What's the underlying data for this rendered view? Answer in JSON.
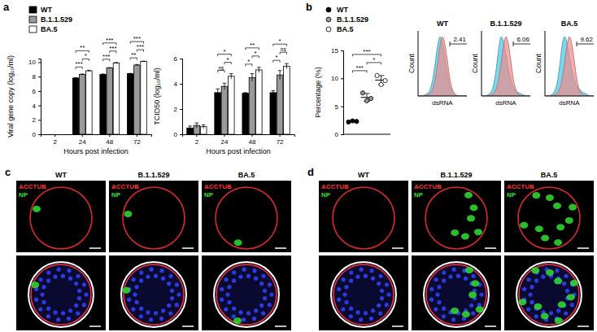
{
  "panel_labels": [
    "a",
    "b"
  ],
  "chart_data": [
    {
      "type": "bar",
      "y_label": "Viral gene copy (log₁₀/ml)",
      "x_label": "Hours post infection",
      "categories": [
        "2",
        "24",
        "48",
        "72"
      ],
      "series": [
        {
          "name": "WT",
          "color": "#000000",
          "values": [
            null,
            7.8,
            8.3,
            8.4
          ],
          "errors": [
            null,
            0.05,
            0.06,
            0.05
          ]
        },
        {
          "name": "B.1.1.529",
          "color": "#9a9a9a",
          "values": [
            null,
            8.3,
            9.2,
            9.6
          ],
          "errors": [
            null,
            0.06,
            0.05,
            0.08
          ]
        },
        {
          "name": "BA.5",
          "color": "#ffffff",
          "values": [
            null,
            8.8,
            9.9,
            10.1
          ],
          "errors": [
            null,
            0.08,
            0.06,
            0.05
          ]
        }
      ],
      "ylim": [
        0,
        10.5
      ],
      "yticks": [
        0,
        2,
        4,
        6,
        8,
        10
      ],
      "legend": "top-left",
      "annotations": [
        {
          "text": "***",
          "category": "24",
          "pair": [
            "WT",
            "B.1.1.529"
          ]
        },
        {
          "text": "*",
          "category": "24",
          "pair": [
            "B.1.1.529",
            "BA.5"
          ]
        },
        {
          "text": "**",
          "category": "24",
          "pair": [
            "WT",
            "BA.5"
          ]
        },
        {
          "text": "***",
          "category": "48",
          "pair": [
            "WT",
            "B.1.1.529"
          ]
        },
        {
          "text": "***",
          "category": "48",
          "pair": [
            "B.1.1.529",
            "BA.5"
          ]
        },
        {
          "text": "***",
          "category": "48",
          "pair": [
            "WT",
            "BA.5"
          ]
        },
        {
          "text": "**",
          "category": "72",
          "pair": [
            "WT",
            "B.1.1.529"
          ]
        },
        {
          "text": "***",
          "category": "72",
          "pair": [
            "B.1.1.529",
            "BA.5"
          ]
        },
        {
          "text": "***",
          "category": "72",
          "pair": [
            "WT",
            "BA.5"
          ]
        }
      ]
    },
    {
      "type": "bar",
      "y_label": "TCID50 (log₁₀/ml)",
      "x_label": "Hours post infection",
      "categories": [
        "2",
        "24",
        "48",
        "72"
      ],
      "series": [
        {
          "name": "WT",
          "color": "#000000",
          "values": [
            0.5,
            3.3,
            3.25,
            3.3
          ],
          "errors": [
            0.15,
            0.3,
            0.05,
            0.15
          ]
        },
        {
          "name": "B.1.1.529",
          "color": "#9a9a9a",
          "values": [
            0.7,
            3.8,
            4.5,
            4.7
          ],
          "errors": [
            0.2,
            0.25,
            0.3,
            0.35
          ]
        },
        {
          "name": "BA.5",
          "color": "#ffffff",
          "values": [
            0.6,
            4.6,
            5.1,
            5.4
          ],
          "errors": [
            0.15,
            0.2,
            0.2,
            0.2
          ]
        }
      ],
      "ylim": [
        0,
        6
      ],
      "yticks": [
        0,
        2,
        4,
        6
      ],
      "annotations": [
        {
          "text": "ns",
          "category": "24",
          "pair": [
            "WT",
            "B.1.1.529"
          ]
        },
        {
          "text": "*",
          "category": "24",
          "pair": [
            "B.1.1.529",
            "BA.5"
          ]
        },
        {
          "text": "*",
          "category": "24",
          "pair": [
            "WT",
            "BA.5"
          ]
        },
        {
          "text": "*",
          "category": "48",
          "pair": [
            "WT",
            "B.1.1.529"
          ]
        },
        {
          "text": "*",
          "category": "48",
          "pair": [
            "B.1.1.529",
            "BA.5"
          ]
        },
        {
          "text": "**",
          "category": "48",
          "pair": [
            "WT",
            "BA.5"
          ]
        },
        {
          "text": "*",
          "category": "72",
          "pair": [
            "WT",
            "B.1.1.529"
          ]
        },
        {
          "text": "ns",
          "category": "72",
          "pair": [
            "B.1.1.529",
            "BA.5"
          ]
        },
        {
          "text": "*",
          "category": "72",
          "pair": [
            "WT",
            "BA.5"
          ]
        }
      ]
    },
    {
      "type": "dot",
      "y_label": "Percentage (%)",
      "marker": "circle",
      "series": [
        {
          "name": "WT",
          "color": "#000000",
          "values": [
            2.2,
            2.4,
            2.3
          ],
          "mean": 2.3,
          "error": 0.1
        },
        {
          "name": "B.1.1.529",
          "color": "#9a9a9a",
          "values": [
            7.4,
            6.0,
            6.4
          ],
          "mean": 6.6,
          "error": 0.7
        },
        {
          "name": "BA.5",
          "color": "#ffffff",
          "values": [
            10.5,
            8.9,
            9.6
          ],
          "mean": 9.7,
          "error": 0.8
        }
      ],
      "ylim": [
        0,
        15
      ],
      "yticks": [
        0,
        5,
        10,
        15
      ],
      "legend": "top-left",
      "tick_labels": "y",
      "annotations": [
        {
          "text": "***",
          "pair": [
            "WT",
            "B.1.1.529"
          ]
        },
        {
          "text": "*",
          "pair": [
            "B.1.1.529",
            "BA.5"
          ]
        },
        {
          "text": "***",
          "pair": [
            "WT",
            "BA.5"
          ]
        }
      ]
    },
    {
      "type": "area",
      "title": "WT",
      "x_label": "dsRNA",
      "y_label": "Count",
      "tick_labels": false,
      "x": [
        0,
        1,
        2,
        3,
        4,
        5,
        6,
        7,
        8,
        9,
        10,
        11,
        12,
        13,
        14,
        15,
        16,
        17,
        18,
        19,
        20
      ],
      "series": [
        {
          "color": "#45c5e5",
          "values": [
            0,
            0,
            1,
            2,
            5,
            12,
            28,
            55,
            85,
            100,
            90,
            65,
            38,
            18,
            7,
            3,
            1,
            0,
            0,
            0,
            0
          ]
        },
        {
          "color": "#f08a8a",
          "values": [
            0,
            0,
            0,
            1,
            2,
            5,
            12,
            28,
            55,
            85,
            100,
            88,
            60,
            30,
            12,
            4,
            1,
            0,
            0,
            0,
            0
          ]
        }
      ],
      "xlim": [
        0,
        20
      ],
      "ylim": [
        0,
        110
      ],
      "gate": {
        "x": 13,
        "value": 2.41
      }
    },
    {
      "type": "area",
      "title": "B.1.1.529",
      "x_label": "dsRNA",
      "y_label": "Count",
      "tick_labels": false,
      "x": [
        0,
        1,
        2,
        3,
        4,
        5,
        6,
        7,
        8,
        9,
        10,
        11,
        12,
        13,
        14,
        15,
        16,
        17,
        18,
        19,
        20
      ],
      "series": [
        {
          "color": "#45c5e5",
          "values": [
            0,
            0,
            1,
            3,
            8,
            20,
            45,
            78,
            100,
            92,
            70,
            45,
            28,
            16,
            9,
            6,
            4,
            2,
            1,
            0,
            0
          ]
        },
        {
          "color": "#f08a8a",
          "values": [
            0,
            0,
            0,
            1,
            2,
            5,
            12,
            28,
            55,
            85,
            100,
            88,
            60,
            30,
            12,
            4,
            1,
            0,
            0,
            0,
            0
          ]
        }
      ],
      "xlim": [
        0,
        20
      ],
      "ylim": [
        0,
        110
      ],
      "gate": {
        "x": 13,
        "value": 6.06
      }
    },
    {
      "type": "area",
      "title": "BA.5",
      "x_label": "dsRNA",
      "y_label": "Count",
      "tick_labels": false,
      "x": [
        0,
        1,
        2,
        3,
        4,
        5,
        6,
        7,
        8,
        9,
        10,
        11,
        12,
        13,
        14,
        15,
        16,
        17,
        18,
        19,
        20
      ],
      "series": [
        {
          "color": "#45c5e5",
          "values": [
            0,
            0,
            1,
            3,
            9,
            22,
            50,
            85,
            100,
            90,
            66,
            44,
            28,
            18,
            12,
            8,
            5,
            3,
            1,
            0,
            0
          ]
        },
        {
          "color": "#f08a8a",
          "values": [
            0,
            0,
            0,
            1,
            2,
            5,
            12,
            28,
            55,
            85,
            100,
            88,
            60,
            30,
            12,
            4,
            1,
            0,
            0,
            0,
            0
          ]
        }
      ],
      "xlim": [
        0,
        20
      ],
      "ylim": [
        0,
        110
      ],
      "gate": {
        "x": 13,
        "value": 9.62
      }
    }
  ],
  "image_panels": [
    {
      "label": "c",
      "columns": [
        "WT",
        "B.1.1.529",
        "BA.5"
      ],
      "channels": [
        {
          "text": "ACCTUB",
          "color": "#ff3030"
        },
        {
          "text": "NP",
          "color": "#30e030"
        }
      ]
    },
    {
      "label": "d",
      "columns": [
        "WT",
        "B.1.1.529",
        "BA.5"
      ],
      "channels": [
        {
          "text": "ACCTUB",
          "color": "#ff3030"
        },
        {
          "text": "NP",
          "color": "#30e030"
        }
      ]
    }
  ]
}
